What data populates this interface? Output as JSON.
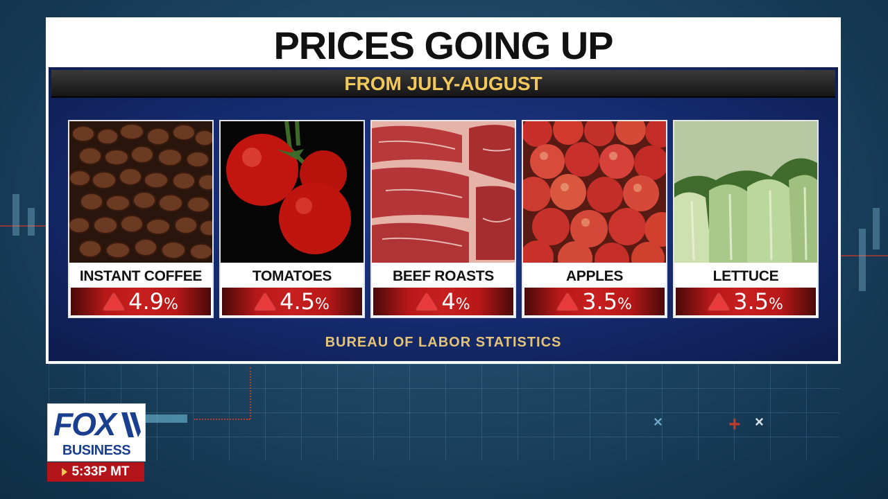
{
  "title": "PRICES GOING UP",
  "subtitle": "FROM JULY-AUGUST",
  "source": "BUREAU OF LABOR STATISTICS",
  "items": [
    {
      "label": "INSTANT COFFEE",
      "value": "4.9",
      "unit": "%",
      "image": "coffee-beans-photo"
    },
    {
      "label": "TOMATOES",
      "value": "4.5",
      "unit": "%",
      "image": "tomatoes-photo"
    },
    {
      "label": "BEEF ROASTS",
      "value": "4",
      "unit": "%",
      "image": "beef-roasts-photo"
    },
    {
      "label": "APPLES",
      "value": "3.5",
      "unit": "%",
      "image": "apples-photo"
    },
    {
      "label": "LETTUCE",
      "value": "3.5",
      "unit": "%",
      "image": "lettuce-photo"
    }
  ],
  "logo": {
    "brand": "FOX",
    "sub": "BUSINESS"
  },
  "clock": "5:33P MT",
  "colors": {
    "title_bar_text": "#f2c75c",
    "increase_red": "#c81f1f",
    "brand_blue": "#1a3f8f",
    "clock_red": "#b3141a"
  }
}
